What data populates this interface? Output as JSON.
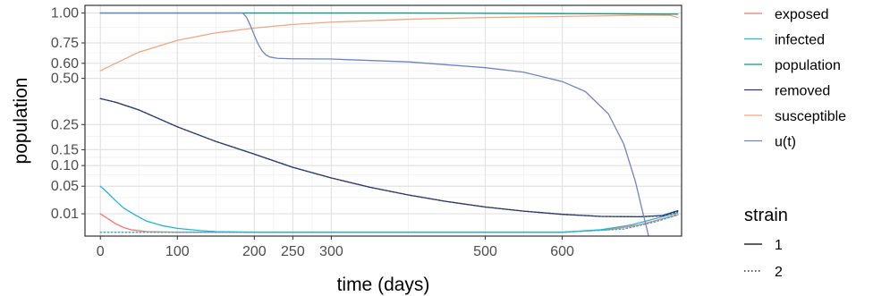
{
  "chart_data": {
    "type": "line",
    "xlabel": "time (days)",
    "ylabel": "population",
    "xlim": [
      -20,
      755
    ],
    "ylim": [
      0.0,
      1.07
    ],
    "y_scale": "sqrt",
    "grid": true,
    "legend_position": "right",
    "x_ticks": [
      0,
      100,
      200,
      250,
      300,
      500,
      600
    ],
    "x_tick_labels": [
      "0",
      "100",
      "200",
      "250",
      "300",
      "500",
      "600"
    ],
    "y_ticks": [
      0.01,
      0.05,
      0.1,
      0.15,
      0.25,
      0.5,
      0.6,
      0.75,
      1.0
    ],
    "y_tick_labels": [
      "0.01",
      "0.05",
      "0.10",
      "0.15",
      "0.25",
      "0.50",
      "0.60",
      "0.75",
      "1.00"
    ],
    "legend_color_title": "",
    "legend_linetype_title": "strain",
    "series": [
      {
        "name": "exposed",
        "color": "#F8766D",
        "strain": "1",
        "x": [
          0,
          10,
          20,
          30,
          40,
          60,
          100,
          300,
          600,
          660,
          700,
          730,
          750
        ],
        "y": [
          0.01,
          0.006,
          0.003,
          0.0015,
          0.0008,
          0.0004,
          0.0003,
          0.0003,
          0.0003,
          0.0008,
          0.0025,
          0.006,
          0.009
        ]
      },
      {
        "name": "exposed",
        "color": "#F8766D",
        "strain": "2",
        "x": [
          0,
          100,
          300,
          600,
          680,
          720,
          750
        ],
        "y": [
          0.0003,
          0.0003,
          0.0003,
          0.0003,
          0.001,
          0.004,
          0.01
        ]
      },
      {
        "name": "infected",
        "color": "#1FB6D9",
        "strain": "1",
        "x": [
          0,
          10,
          20,
          30,
          45,
          60,
          80,
          100,
          130,
          150,
          200,
          600,
          650,
          690,
          720,
          750
        ],
        "y": [
          0.05,
          0.037,
          0.025,
          0.016,
          0.009,
          0.0045,
          0.0022,
          0.0012,
          0.0006,
          0.0004,
          0.0003,
          0.0003,
          0.0008,
          0.0025,
          0.006,
          0.011
        ]
      },
      {
        "name": "infected",
        "color": "#1FB6D9",
        "strain": "2",
        "x": [
          0,
          100,
          300,
          600,
          680,
          720,
          750
        ],
        "y": [
          0.0003,
          0.0003,
          0.0003,
          0.0003,
          0.001,
          0.004,
          0.009
        ]
      },
      {
        "name": "population",
        "color": "#00A087",
        "strain": "1",
        "x": [
          0,
          200,
          400,
          600,
          750
        ],
        "y": [
          1.0,
          1.0,
          1.0,
          0.995,
          0.99
        ]
      },
      {
        "name": "removed",
        "color": "#2A3A6E",
        "strain": "1",
        "x": [
          0,
          20,
          50,
          100,
          150,
          200,
          250,
          300,
          350,
          400,
          450,
          500,
          550,
          600,
          650,
          700,
          730,
          750
        ],
        "y": [
          0.38,
          0.36,
          0.32,
          0.24,
          0.18,
          0.135,
          0.095,
          0.068,
          0.048,
          0.034,
          0.024,
          0.017,
          0.0125,
          0.0095,
          0.0078,
          0.0075,
          0.0085,
          0.013
        ]
      },
      {
        "name": "removed",
        "color": "#2A3A6E",
        "strain": "2",
        "x": [
          0,
          20,
          50,
          100,
          150,
          200,
          250,
          300,
          350,
          400,
          450,
          500,
          550,
          600,
          650,
          700,
          730,
          750
        ],
        "y": [
          0.38,
          0.36,
          0.32,
          0.24,
          0.18,
          0.135,
          0.095,
          0.068,
          0.048,
          0.034,
          0.024,
          0.017,
          0.0125,
          0.0095,
          0.0078,
          0.0075,
          0.0082,
          0.012
        ]
      },
      {
        "name": "susceptible",
        "color": "#F4A582",
        "strain": "1",
        "x": [
          0,
          50,
          100,
          150,
          200,
          250,
          300,
          400,
          500,
          600,
          700,
          740,
          750
        ],
        "y": [
          0.55,
          0.68,
          0.77,
          0.83,
          0.87,
          0.9,
          0.92,
          0.945,
          0.96,
          0.97,
          0.98,
          0.98,
          0.96
        ]
      },
      {
        "name": "u(t)",
        "color": "#6F86C4",
        "strain": "1",
        "x": [
          0,
          185,
          190,
          195,
          200,
          205,
          210,
          215,
          220,
          230,
          250,
          300,
          400,
          500,
          550,
          600,
          630,
          660,
          680,
          695,
          705,
          710,
          712
        ],
        "y": [
          1.0,
          1.0,
          0.96,
          0.89,
          0.81,
          0.74,
          0.69,
          0.66,
          0.645,
          0.635,
          0.632,
          0.63,
          0.61,
          0.57,
          0.54,
          0.48,
          0.42,
          0.3,
          0.17,
          0.06,
          0.01,
          0.001,
          0.0
        ]
      }
    ]
  }
}
